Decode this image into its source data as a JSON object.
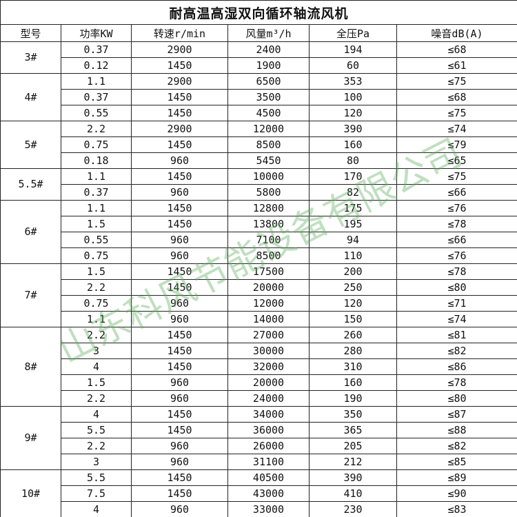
{
  "title": "耐高温高湿双向循环轴流风机",
  "header": [
    "型号",
    "功率KW",
    "转速r/min",
    "风量m³/h",
    "全压Pa",
    "噪音dB(A)"
  ],
  "groups": [
    {
      "model": "3#",
      "rows": [
        [
          "0.37",
          "2900",
          "2400",
          "194",
          "≤68"
        ],
        [
          "0.12",
          "1450",
          "1900",
          "60",
          "≤61"
        ]
      ]
    },
    {
      "model": "4#",
      "rows": [
        [
          "1.1",
          "2900",
          "6500",
          "353",
          "≤75"
        ],
        [
          "0.37",
          "1450",
          "3500",
          "100",
          "≤68"
        ],
        [
          "0.55",
          "1450",
          "4500",
          "120",
          "≤75"
        ]
      ]
    },
    {
      "model": "5#",
      "rows": [
        [
          "2.2",
          "2900",
          "12000",
          "390",
          "≤74"
        ],
        [
          "0.75",
          "1450",
          "8500",
          "160",
          "≤79"
        ],
        [
          "0.18",
          "960",
          "5450",
          "80",
          "≤65"
        ]
      ]
    },
    {
      "model": "5.5#",
      "rows": [
        [
          "1.1",
          "1450",
          "10000",
          "170",
          "≤75"
        ],
        [
          "0.37",
          "960",
          "5800",
          "82",
          "≤66"
        ]
      ]
    },
    {
      "model": "6#",
      "rows": [
        [
          "1.1",
          "1450",
          "12800",
          "175",
          "≤76"
        ],
        [
          "1.5",
          "1450",
          "13800",
          "195",
          "≤78"
        ],
        [
          "0.55",
          "960",
          "7100",
          "94",
          "≤66"
        ],
        [
          "0.75",
          "960",
          "8500",
          "110",
          "≤76"
        ]
      ]
    },
    {
      "model": "7#",
      "rows": [
        [
          "1.5",
          "1450",
          "17500",
          "200",
          "≤78"
        ],
        [
          "2.2",
          "1450",
          "20000",
          "250",
          "≤80"
        ],
        [
          "0.75",
          "960",
          "12000",
          "120",
          "≤71"
        ],
        [
          "1.1",
          "960",
          "14000",
          "150",
          "≤74"
        ]
      ]
    },
    {
      "model": "8#",
      "rows": [
        [
          "2.2",
          "1450",
          "27000",
          "260",
          "≤81"
        ],
        [
          "3",
          "1450",
          "30000",
          "280",
          "≤82"
        ],
        [
          "4",
          "1450",
          "32000",
          "310",
          "≤86"
        ],
        [
          "1.5",
          "960",
          "20000",
          "160",
          "≤78"
        ],
        [
          "2.2",
          "960",
          "24000",
          "190",
          "≤80"
        ]
      ]
    },
    {
      "model": "9#",
      "rows": [
        [
          "4",
          "1450",
          "34000",
          "350",
          "≤87"
        ],
        [
          "5.5",
          "1450",
          "36000",
          "365",
          "≤88"
        ],
        [
          "2.2",
          "960",
          "26000",
          "205",
          "≤82"
        ],
        [
          "3",
          "960",
          "31100",
          "212",
          "≤85"
        ]
      ]
    },
    {
      "model": "10#",
      "rows": [
        [
          "5.5",
          "1450",
          "40500",
          "390",
          "≤89"
        ],
        [
          "7.5",
          "1450",
          "43000",
          "410",
          "≤90"
        ],
        [
          "4",
          "960",
          "33000",
          "230",
          "≤83"
        ]
      ]
    }
  ],
  "watermark": "山东科风节能设备有限公司"
}
